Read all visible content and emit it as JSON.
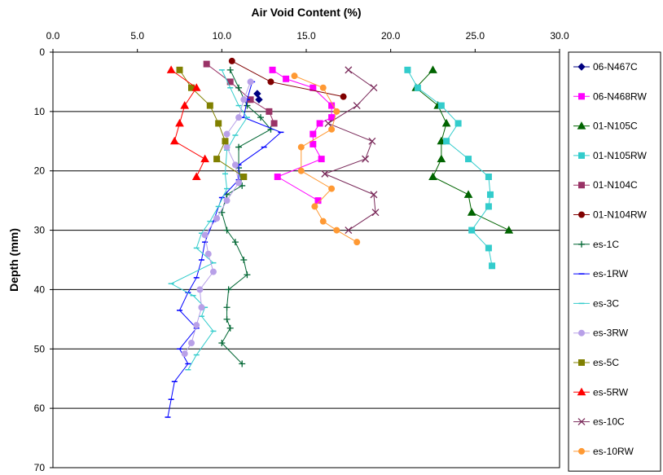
{
  "chart_data": {
    "type": "line",
    "title": "",
    "xlabel": "Air Void Content (%)",
    "ylabel": "Depth (mm)",
    "xlim": [
      0,
      30
    ],
    "ylim": [
      0,
      70
    ],
    "y_inverted": true,
    "x_axis_position": "top",
    "x_ticks": [
      "0.0",
      "5.0",
      "10.0",
      "15.0",
      "20.0",
      "25.0",
      "30.0"
    ],
    "y_ticks": [
      "0",
      "10",
      "20",
      "30",
      "40",
      "50",
      "60",
      "70"
    ],
    "grid": "horizontal-major",
    "legend_position": "right",
    "series": [
      {
        "name": "06-N467C",
        "color": "#000080",
        "marker": "diamond",
        "points": [
          [
            12.1,
            7
          ],
          [
            12.2,
            8
          ]
        ]
      },
      {
        "name": "06-N468RW",
        "color": "#ff00ff",
        "marker": "square",
        "points": [
          [
            13.0,
            3
          ],
          [
            13.8,
            4.5
          ],
          [
            15.4,
            6
          ],
          [
            16.5,
            9
          ],
          [
            16.5,
            11
          ],
          [
            15.8,
            12
          ],
          [
            15.4,
            13.8
          ],
          [
            15.4,
            15.5
          ],
          [
            15.9,
            18
          ],
          [
            13.3,
            21
          ],
          [
            15.7,
            25
          ]
        ]
      },
      {
        "name": "01-N105C",
        "color": "#006400",
        "marker": "triangle",
        "points": [
          [
            22.5,
            3
          ],
          [
            21.5,
            6
          ],
          [
            22.8,
            9
          ],
          [
            23.3,
            12
          ],
          [
            23.0,
            15
          ],
          [
            23.0,
            18
          ],
          [
            22.5,
            21
          ],
          [
            24.6,
            24
          ],
          [
            24.8,
            27
          ],
          [
            27.0,
            30
          ]
        ]
      },
      {
        "name": "01-N105RW",
        "color": "#33cccc",
        "marker": "square",
        "points": [
          [
            21.0,
            3
          ],
          [
            21.6,
            6
          ],
          [
            23.0,
            9
          ],
          [
            24.0,
            12
          ],
          [
            23.3,
            15
          ],
          [
            24.6,
            18
          ],
          [
            25.8,
            21
          ],
          [
            25.9,
            24
          ],
          [
            25.8,
            26
          ],
          [
            24.8,
            30
          ],
          [
            25.8,
            33
          ],
          [
            26.0,
            36
          ]
        ]
      },
      {
        "name": "01-N104C",
        "color": "#993366",
        "marker": "square",
        "points": [
          [
            9.1,
            2
          ],
          [
            10.5,
            5
          ],
          [
            11.7,
            8
          ],
          [
            12.8,
            10
          ],
          [
            13.1,
            12
          ]
        ]
      },
      {
        "name": "01-N104RW",
        "color": "#800000",
        "marker": "circle",
        "points": [
          [
            10.6,
            1.5
          ],
          [
            12.9,
            5
          ],
          [
            17.2,
            7.5
          ]
        ]
      },
      {
        "name": "es-1C",
        "color": "#006633",
        "marker": "plus",
        "points": [
          [
            10.5,
            3
          ],
          [
            11.0,
            6
          ],
          [
            11.5,
            9
          ],
          [
            12.3,
            11
          ],
          [
            12.9,
            13
          ],
          [
            11.0,
            16
          ],
          [
            11.0,
            19.5
          ],
          [
            11.2,
            22.5
          ],
          [
            10.3,
            24
          ],
          [
            10.0,
            27
          ],
          [
            10.3,
            30
          ],
          [
            10.8,
            32
          ],
          [
            11.3,
            35
          ],
          [
            11.5,
            37.5
          ],
          [
            10.4,
            40
          ],
          [
            10.3,
            43
          ],
          [
            10.3,
            45
          ],
          [
            10.5,
            46.5
          ],
          [
            10.0,
            49
          ],
          [
            11.2,
            52.5
          ]
        ]
      },
      {
        "name": "es-1RW",
        "color": "#0000ff",
        "marker": "dash",
        "points": [
          [
            11.8,
            5
          ],
          [
            11.5,
            8
          ],
          [
            11.3,
            11
          ],
          [
            13.5,
            13.5
          ],
          [
            12.5,
            16
          ],
          [
            11.0,
            19
          ],
          [
            11.0,
            21.5
          ],
          [
            10.0,
            24.5
          ],
          [
            9.5,
            28.5
          ],
          [
            9.0,
            32
          ],
          [
            8.8,
            35
          ],
          [
            8.5,
            38
          ],
          [
            8.0,
            40.5
          ],
          [
            7.5,
            43.5
          ],
          [
            8.5,
            46.5
          ],
          [
            7.5,
            50
          ],
          [
            8.0,
            52.5
          ],
          [
            7.2,
            55.5
          ],
          [
            7.0,
            58.5
          ],
          [
            6.8,
            61.5
          ]
        ]
      },
      {
        "name": "es-3C",
        "color": "#33cccc",
        "marker": "dash",
        "points": [
          [
            10.0,
            3
          ],
          [
            10.5,
            6
          ],
          [
            11.0,
            9
          ],
          [
            11.5,
            11
          ],
          [
            10.8,
            14
          ],
          [
            10.3,
            16.5
          ],
          [
            10.2,
            20.5
          ],
          [
            10.3,
            23
          ],
          [
            9.8,
            26
          ],
          [
            9.3,
            28.5
          ],
          [
            8.8,
            30.5
          ],
          [
            8.5,
            33
          ],
          [
            9.5,
            35.5
          ],
          [
            7.0,
            39
          ],
          [
            8.3,
            41
          ],
          [
            9.0,
            43
          ],
          [
            8.8,
            44.5
          ],
          [
            9.5,
            47
          ],
          [
            8.5,
            51
          ],
          [
            8.0,
            53.5
          ]
        ]
      },
      {
        "name": "es-3RW",
        "color": "#b8a0e8",
        "marker": "circle",
        "points": [
          [
            11.7,
            5
          ],
          [
            11.3,
            8
          ],
          [
            11.0,
            11
          ],
          [
            10.3,
            13.8
          ],
          [
            10.3,
            16
          ],
          [
            10.8,
            19
          ],
          [
            11.0,
            22
          ],
          [
            10.3,
            25
          ],
          [
            9.7,
            28
          ],
          [
            9.0,
            30.8
          ],
          [
            9.2,
            34
          ],
          [
            9.5,
            37
          ],
          [
            8.7,
            40
          ],
          [
            8.8,
            43
          ],
          [
            8.5,
            46
          ],
          [
            8.2,
            49
          ],
          [
            7.8,
            50.8
          ]
        ]
      },
      {
        "name": "es-5C",
        "color": "#808000",
        "marker": "square",
        "points": [
          [
            7.5,
            3
          ],
          [
            8.2,
            6
          ],
          [
            9.3,
            9
          ],
          [
            9.8,
            12
          ],
          [
            10.2,
            15
          ],
          [
            9.7,
            18
          ],
          [
            11.3,
            21
          ]
        ]
      },
      {
        "name": "es-5RW",
        "color": "#ff0000",
        "marker": "triangle",
        "points": [
          [
            7.0,
            3
          ],
          [
            8.5,
            6
          ],
          [
            7.8,
            9
          ],
          [
            7.5,
            12
          ],
          [
            7.2,
            15
          ],
          [
            9.0,
            18
          ],
          [
            8.5,
            21
          ]
        ]
      },
      {
        "name": "es-10C",
        "color": "#7a2a5a",
        "marker": "x",
        "points": [
          [
            17.5,
            3
          ],
          [
            19.0,
            6
          ],
          [
            18.0,
            9
          ],
          [
            16.3,
            12
          ],
          [
            18.9,
            15
          ],
          [
            18.5,
            18
          ],
          [
            16.1,
            20.5
          ],
          [
            19.0,
            24
          ],
          [
            19.1,
            27
          ],
          [
            17.5,
            30
          ]
        ]
      },
      {
        "name": "es-10RW",
        "color": "#ff9933",
        "marker": "circle",
        "points": [
          [
            14.3,
            4
          ],
          [
            16.0,
            6
          ],
          [
            16.8,
            10
          ],
          [
            16.5,
            13
          ],
          [
            14.7,
            16
          ],
          [
            14.7,
            20
          ],
          [
            16.5,
            23
          ],
          [
            15.5,
            26
          ],
          [
            16.0,
            28.5
          ],
          [
            16.8,
            30
          ],
          [
            18.0,
            32
          ]
        ]
      }
    ]
  }
}
